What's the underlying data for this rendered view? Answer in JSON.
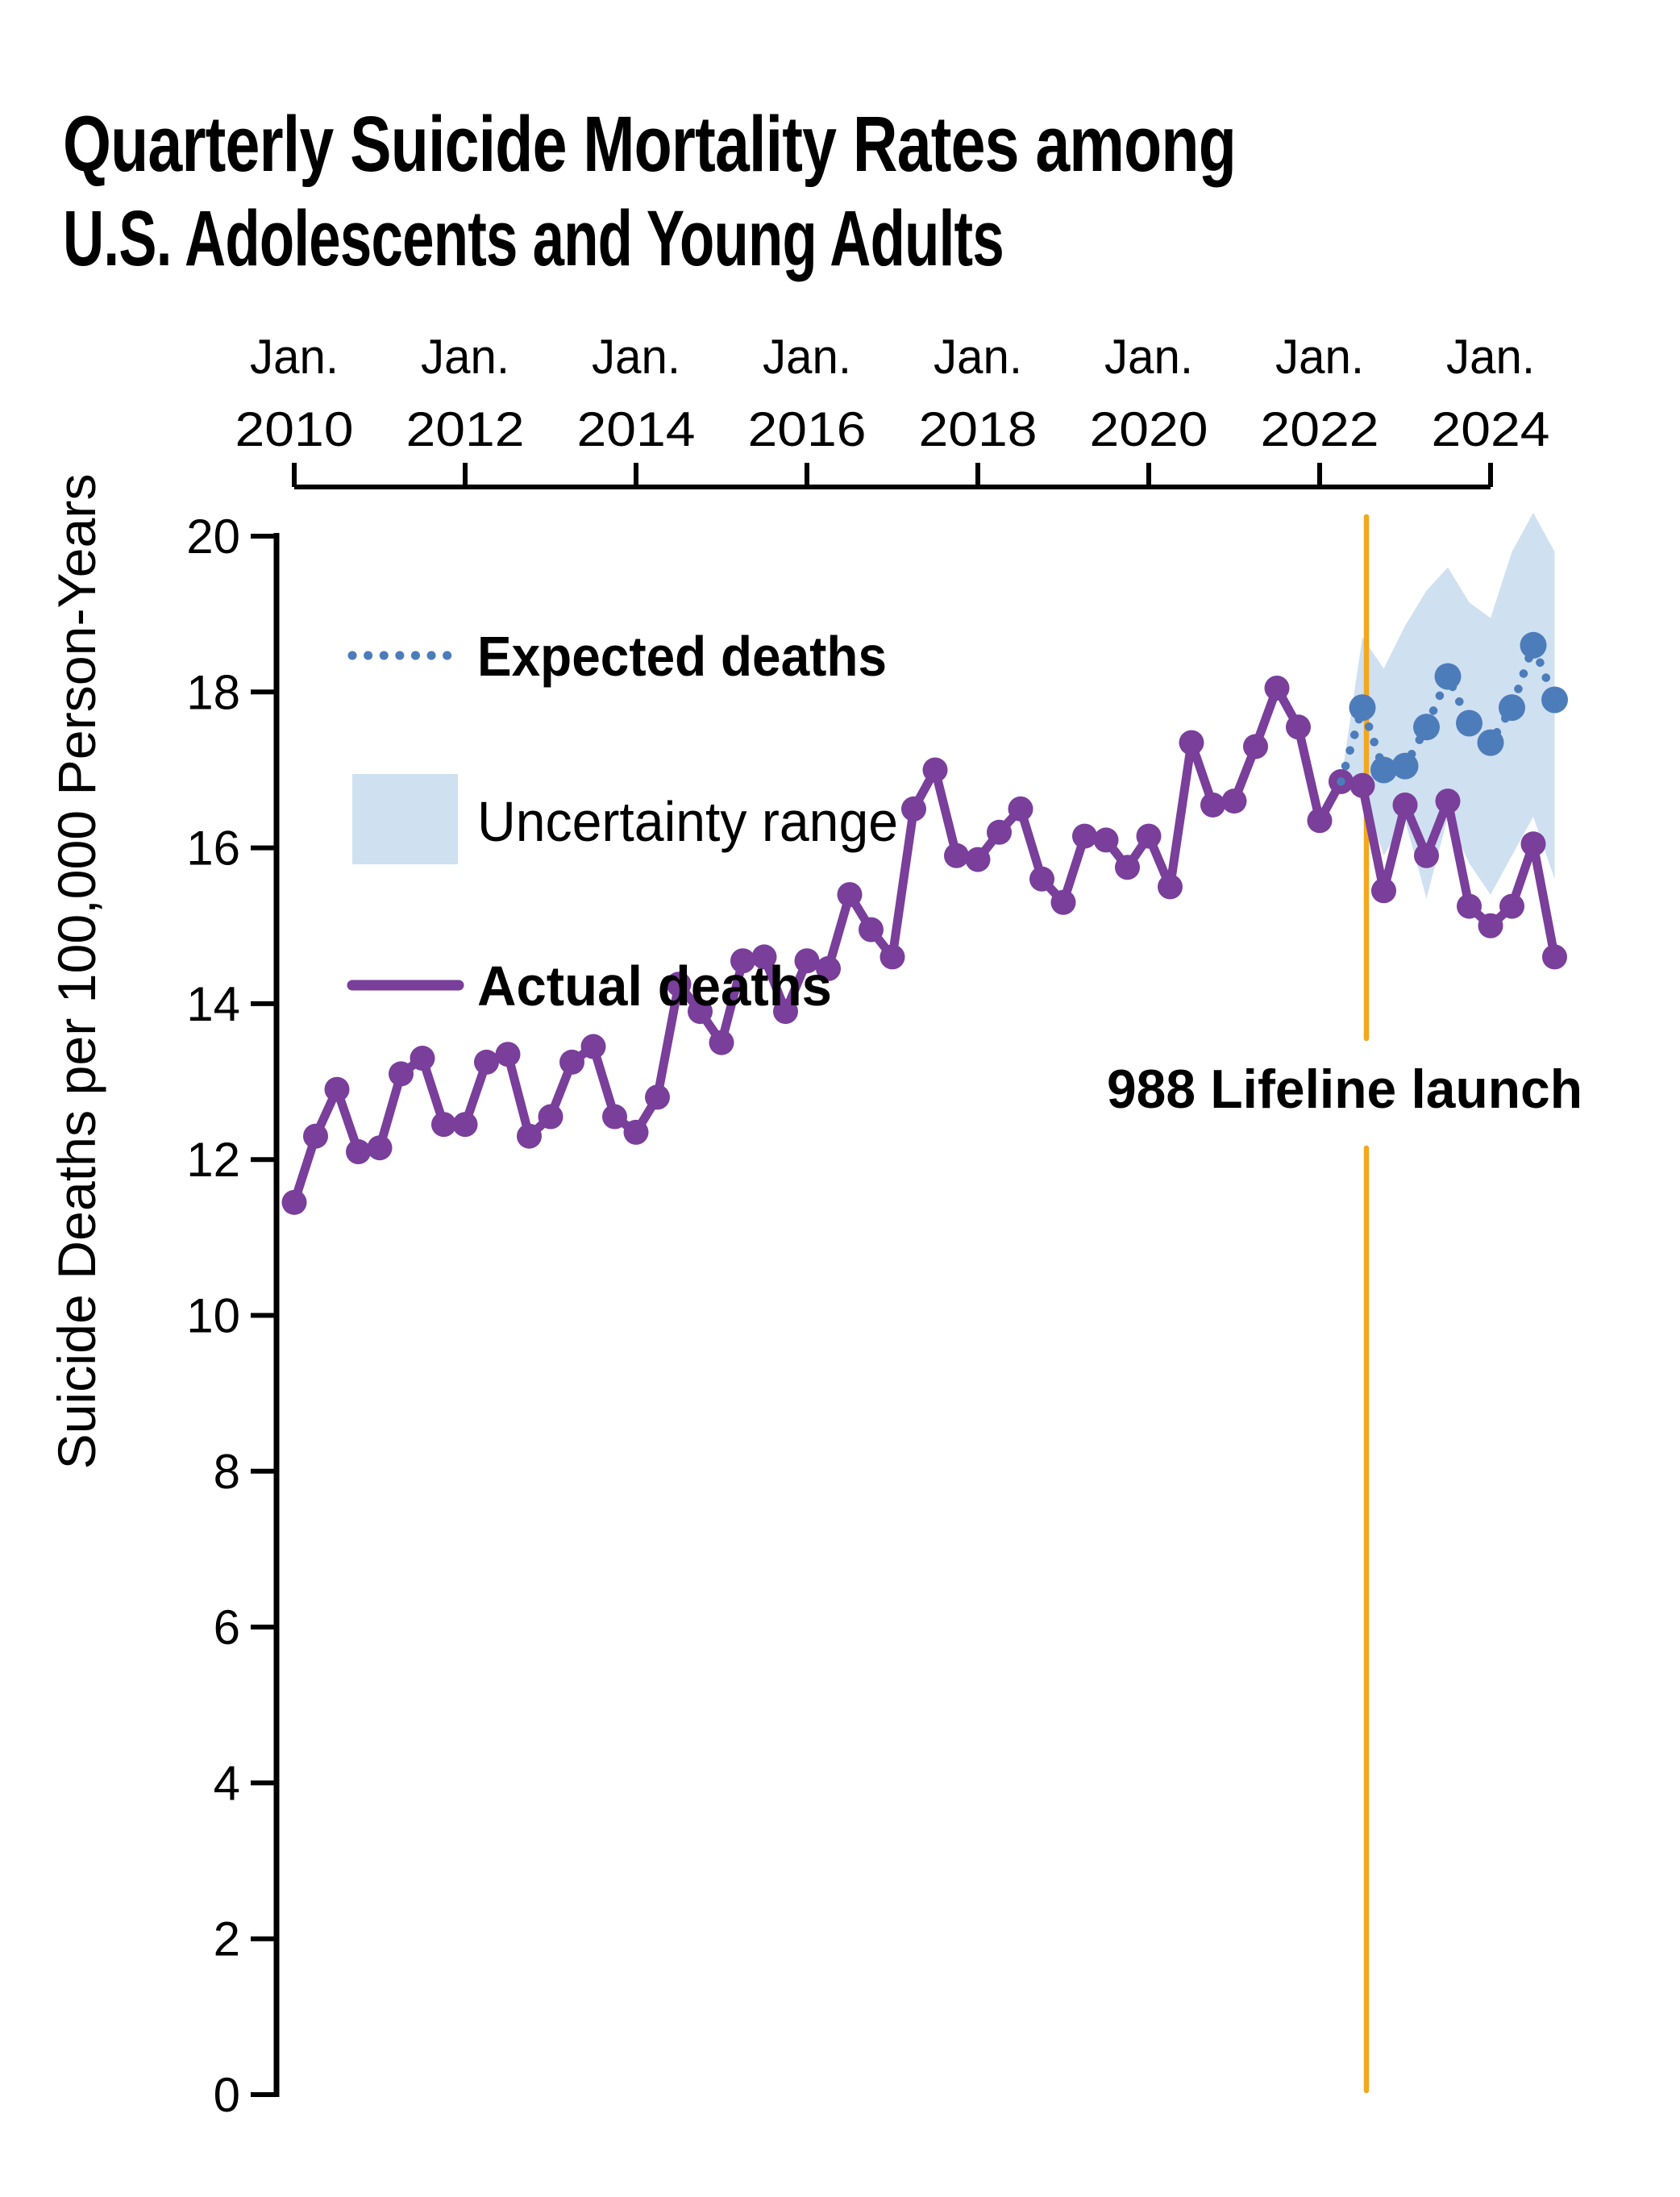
{
  "title": {
    "line1": "Quarterly Suicide Mortality Rates among",
    "line2": "U.S. Adolescents and Young Adults"
  },
  "legend": [
    {
      "label": "Expected deaths",
      "swatch": "dotted-line",
      "color": "#4d7cba"
    },
    {
      "label": "Uncertainty range",
      "swatch": "filled-box",
      "color": "#cfe0f1",
      "text_color": "#9cb9dc"
    },
    {
      "label": "Actual deaths",
      "swatch": "solid-line",
      "color": "#7a3e9b"
    }
  ],
  "annotation": {
    "label": "988 Lifeline launch",
    "color": "#f2a71c",
    "position": "July 2022"
  },
  "y_axis": {
    "label": "Suicide Deaths per 100,000 Person-Years"
  },
  "chart_data": {
    "type": "line",
    "title": "Quarterly Suicide Mortality Rates among U.S. Adolescents and Young Adults",
    "xlabel": "",
    "ylabel": "Suicide Deaths per 100,000 Person-Years",
    "ylim": [
      0,
      20
    ],
    "y_ticks": [
      0,
      2,
      4,
      6,
      8,
      10,
      12,
      14,
      16,
      18,
      20
    ],
    "x_tick_labels": [
      {
        "month": "Jan.",
        "year": "2010"
      },
      {
        "month": "Jan.",
        "year": "2012"
      },
      {
        "month": "Jan.",
        "year": "2014"
      },
      {
        "month": "Jan.",
        "year": "2016"
      },
      {
        "month": "Jan.",
        "year": "2018"
      },
      {
        "month": "Jan.",
        "year": "2020"
      },
      {
        "month": "Jan.",
        "year": "2022"
      },
      {
        "month": "Jan.",
        "year": "2024"
      }
    ],
    "grid": false,
    "legend_position": "upper-left-inside",
    "quarters": [
      "2010 Q1",
      "2010 Q2",
      "2010 Q3",
      "2010 Q4",
      "2011 Q1",
      "2011 Q2",
      "2011 Q3",
      "2011 Q4",
      "2012 Q1",
      "2012 Q2",
      "2012 Q3",
      "2012 Q4",
      "2013 Q1",
      "2013 Q2",
      "2013 Q3",
      "2013 Q4",
      "2014 Q1",
      "2014 Q2",
      "2014 Q3",
      "2014 Q4",
      "2015 Q1",
      "2015 Q2",
      "2015 Q3",
      "2015 Q4",
      "2016 Q1",
      "2016 Q2",
      "2016 Q3",
      "2016 Q4",
      "2017 Q1",
      "2017 Q2",
      "2017 Q3",
      "2017 Q4",
      "2018 Q1",
      "2018 Q2",
      "2018 Q3",
      "2018 Q4",
      "2019 Q1",
      "2019 Q2",
      "2019 Q3",
      "2019 Q4",
      "2020 Q1",
      "2020 Q2",
      "2020 Q3",
      "2020 Q4",
      "2021 Q1",
      "2021 Q2",
      "2021 Q3",
      "2021 Q4",
      "2022 Q1",
      "2022 Q2",
      "2022 Q3",
      "2022 Q4",
      "2023 Q1",
      "2023 Q2",
      "2023 Q3",
      "2023 Q4",
      "2024 Q1",
      "2024 Q2",
      "2024 Q3",
      "2024 Q4"
    ],
    "series": [
      {
        "name": "Actual deaths",
        "color": "#7a3e9b",
        "style": "solid-with-markers",
        "values": [
          11.45,
          12.3,
          12.9,
          12.1,
          12.15,
          13.1,
          13.3,
          12.45,
          12.45,
          13.25,
          13.35,
          12.3,
          12.55,
          13.25,
          13.45,
          12.55,
          12.35,
          12.8,
          14.25,
          13.9,
          13.5,
          14.55,
          14.6,
          13.9,
          14.55,
          14.45,
          15.4,
          14.95,
          14.6,
          16.5,
          17.0,
          15.9,
          15.85,
          16.2,
          16.5,
          15.6,
          15.3,
          16.15,
          16.1,
          15.75,
          16.15,
          15.5,
          17.35,
          16.55,
          16.6,
          17.3,
          18.05,
          17.55,
          16.35,
          16.85,
          16.8,
          15.45,
          16.55,
          15.9,
          16.6,
          15.25,
          15.0,
          15.25,
          16.05,
          14.6
        ]
      },
      {
        "name": "Expected deaths",
        "color": "#4d7cba",
        "style": "dotted-with-markers",
        "start_quarter": "2022 Q2",
        "start_index": 49,
        "values": [
          16.85,
          17.8,
          17.0,
          17.05,
          17.55,
          18.2,
          17.6,
          17.35,
          17.8,
          18.6,
          17.9
        ]
      }
    ],
    "uncertainty_band": {
      "name": "Uncertainty range",
      "color": "#cfe0f1",
      "start_quarter": "2022 Q2",
      "start_index": 49,
      "upper": [
        16.85,
        18.7,
        18.3,
        18.85,
        19.3,
        19.6,
        19.15,
        18.95,
        19.8,
        20.3,
        19.8
      ],
      "lower": [
        16.85,
        16.75,
        15.9,
        16.35,
        15.35,
        16.4,
        15.8,
        15.4,
        15.9,
        16.4,
        15.6
      ]
    },
    "annotation": {
      "label": "988 Lifeline launch",
      "x_quarter": "2022 Q3",
      "color": "#f2a71c"
    }
  }
}
